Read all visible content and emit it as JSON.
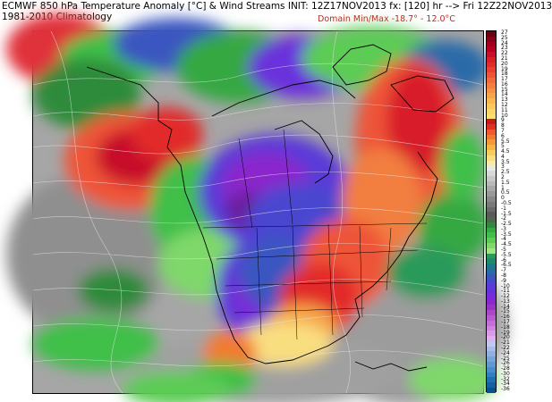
{
  "header": {
    "title_line1": "ECMWF 850 hPa Temperature Anomaly [°C] & Wind Streams INIT: 12Z17NOV2013 fx: [120] hr --> Fri 12Z22NOV2013",
    "title_line2": "1981-2010 Climatology",
    "domain_note": "Domain Min/Max -18.7° - 12.0°C"
  },
  "colorbar": {
    "labels": [
      "27",
      "25",
      "24",
      "23",
      "22",
      "21",
      "20",
      "19",
      "18",
      "17",
      "16",
      "15",
      "14",
      "13",
      "12",
      "11",
      "10",
      "9",
      "8",
      "7",
      "6",
      "5.5",
      "5",
      "4.5",
      "4",
      "3.5",
      "3",
      "2.5",
      "2",
      "1.5",
      "1",
      "0.5",
      "0",
      "-0.5",
      "-1",
      "-1.5",
      "-2",
      "-2.5",
      "-3",
      "-3.5",
      "-4",
      "-4.5",
      "-5",
      "-5.5",
      "-6",
      "-6.5",
      "-7",
      "-8",
      "-9",
      "-10",
      "-11",
      "-12",
      "-13",
      "-14",
      "-15",
      "-16",
      "-17",
      "-18",
      "-19",
      "-20",
      "-21",
      "-22",
      "-24",
      "-25",
      "-26",
      "-28",
      "-30",
      "-32",
      "-34",
      "-36"
    ],
    "colors": [
      "#6b0010",
      "#8a0018",
      "#a0001e",
      "#b80022",
      "#c8102a",
      "#d81f2a",
      "#e22c2a",
      "#e84030",
      "#ee5538",
      "#f06a3c",
      "#f27e40",
      "#f49244",
      "#f6a648",
      "#f8b850",
      "#f9c858",
      "#fad668",
      "#fbe070",
      "#c81a1a",
      "#e03020",
      "#ee5a2a",
      "#f27a30",
      "#f49838",
      "#f6b444",
      "#f8cc5a",
      "#f9de80",
      "#fae8a8",
      "#e8e8e8",
      "#d8d8d8",
      "#c8c8c8",
      "#b8b8b8",
      "#a8a8a8",
      "#989898",
      "#888888",
      "#7a7a7a",
      "#6a6a6a",
      "#5a5a5a",
      "#4a6a4a",
      "#2e8b3a",
      "#35a843",
      "#3fbf4a",
      "#5ccc55",
      "#7fd86a",
      "#a2e47f",
      "#2a9a5a",
      "#1f8a70",
      "#1c7a8a",
      "#2a6aa8",
      "#3a56c0",
      "#4a46d0",
      "#5a3ad8",
      "#6a30dc",
      "#7a2ad8",
      "#8a28cc",
      "#9a34c0",
      "#aa48c8",
      "#b85ad0",
      "#c46ed8",
      "#cf84e0",
      "#d99ae8",
      "#e2aef0",
      "#c0c8f0",
      "#a8bce8",
      "#90b0e0",
      "#78a4d8",
      "#6098d0",
      "#488cc8",
      "#3080c0",
      "#1e70b0",
      "#1460a0",
      "#0a5090"
    ]
  }
}
